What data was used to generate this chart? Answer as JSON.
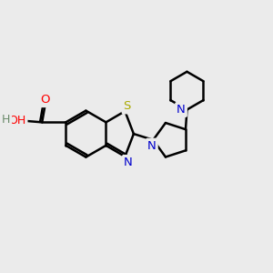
{
  "background_color": "#ebebeb",
  "bond_color": "#000000",
  "atom_colors": {
    "N": "#0000cc",
    "O": "#ff0000",
    "S": "#aaaa00",
    "H": "#6a8a6a",
    "C": "#000000"
  },
  "figsize": [
    3.0,
    3.0
  ],
  "dpi": 100
}
